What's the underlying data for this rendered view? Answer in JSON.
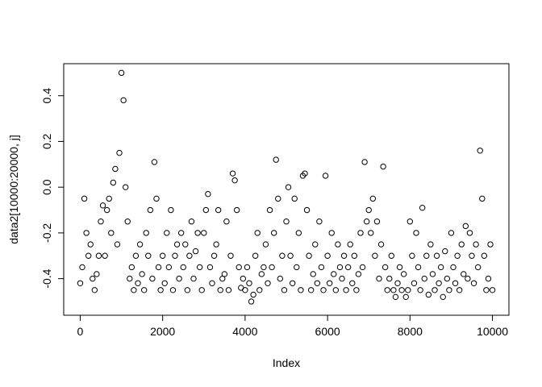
{
  "chart_data": {
    "type": "scatter",
    "x_label": "Index",
    "y_label": "data2[10000:20000, j]",
    "x": [
      0,
      50,
      100,
      150,
      200,
      250,
      300,
      350,
      400,
      450,
      500,
      550,
      600,
      650,
      700,
      750,
      800,
      850,
      900,
      950,
      1000,
      1050,
      1100,
      1150,
      1200,
      1250,
      1300,
      1350,
      1400,
      1450,
      1500,
      1550,
      1600,
      1650,
      1700,
      1750,
      1800,
      1850,
      1900,
      1950,
      2000,
      2050,
      2100,
      2150,
      2200,
      2250,
      2300,
      2350,
      2400,
      2450,
      2500,
      2550,
      2600,
      2650,
      2700,
      2750,
      2800,
      2850,
      2900,
      2950,
      3000,
      3050,
      3100,
      3150,
      3200,
      3250,
      3300,
      3350,
      3400,
      3450,
      3500,
      3550,
      3600,
      3650,
      3700,
      3750,
      3800,
      3850,
      3900,
      3950,
      4000,
      4050,
      4100,
      4150,
      4200,
      4250,
      4300,
      4350,
      4400,
      4450,
      4500,
      4550,
      4600,
      4650,
      4700,
      4750,
      4800,
      4850,
      4900,
      4950,
      5000,
      5050,
      5100,
      5150,
      5200,
      5250,
      5300,
      5350,
      5400,
      5450,
      5500,
      5550,
      5600,
      5650,
      5700,
      5750,
      5800,
      5850,
      5900,
      5950,
      6000,
      6050,
      6100,
      6150,
      6200,
      6250,
      6300,
      6350,
      6400,
      6450,
      6500,
      6550,
      6600,
      6650,
      6700,
      6750,
      6800,
      6850,
      6900,
      6950,
      7000,
      7050,
      7100,
      7150,
      7200,
      7250,
      7300,
      7350,
      7400,
      7450,
      7500,
      7550,
      7600,
      7650,
      7700,
      7750,
      7800,
      7850,
      7900,
      7950,
      8000,
      8050,
      8100,
      8150,
      8200,
      8250,
      8300,
      8350,
      8400,
      8450,
      8500,
      8550,
      8600,
      8650,
      8700,
      8750,
      8800,
      8850,
      8900,
      8950,
      9000,
      9050,
      9100,
      9150,
      9200,
      9250,
      9300,
      9350,
      9400,
      9450,
      9500,
      9550,
      9600,
      9650,
      9700,
      9750,
      9800,
      9850,
      9900,
      9950,
      10000
    ],
    "values": [
      -0.42,
      -0.35,
      -0.05,
      -0.2,
      -0.3,
      -0.25,
      -0.4,
      -0.45,
      -0.38,
      -0.3,
      -0.15,
      -0.08,
      -0.3,
      -0.1,
      -0.05,
      -0.2,
      0.02,
      0.08,
      -0.25,
      0.15,
      0.5,
      0.38,
      0.0,
      -0.15,
      -0.4,
      -0.35,
      -0.45,
      -0.3,
      -0.42,
      -0.25,
      -0.38,
      -0.45,
      -0.2,
      -0.3,
      -0.1,
      -0.4,
      0.11,
      -0.05,
      -0.35,
      -0.45,
      -0.3,
      -0.42,
      -0.2,
      -0.35,
      -0.1,
      -0.45,
      -0.3,
      -0.25,
      -0.4,
      -0.2,
      -0.35,
      -0.25,
      -0.45,
      -0.3,
      -0.15,
      -0.4,
      -0.28,
      -0.2,
      -0.35,
      -0.45,
      -0.2,
      -0.1,
      -0.03,
      -0.35,
      -0.42,
      -0.3,
      -0.25,
      -0.1,
      -0.45,
      -0.4,
      -0.38,
      -0.15,
      -0.45,
      -0.3,
      0.06,
      0.03,
      -0.1,
      -0.35,
      -0.44,
      -0.4,
      -0.45,
      -0.35,
      -0.42,
      -0.5,
      -0.47,
      -0.3,
      -0.2,
      -0.45,
      -0.38,
      -0.35,
      -0.25,
      -0.42,
      -0.1,
      -0.35,
      -0.2,
      0.12,
      -0.05,
      -0.4,
      -0.3,
      -0.45,
      -0.15,
      0.0,
      -0.3,
      -0.42,
      -0.05,
      -0.35,
      -0.2,
      -0.45,
      0.05,
      0.06,
      -0.1,
      -0.3,
      -0.45,
      -0.38,
      -0.25,
      -0.42,
      -0.15,
      -0.35,
      -0.45,
      0.05,
      -0.3,
      -0.42,
      -0.2,
      -0.38,
      -0.45,
      -0.25,
      -0.35,
      -0.4,
      -0.3,
      -0.45,
      -0.35,
      -0.25,
      -0.42,
      -0.3,
      -0.45,
      -0.38,
      -0.2,
      -0.35,
      0.11,
      -0.15,
      -0.1,
      -0.2,
      -0.05,
      -0.3,
      -0.15,
      -0.4,
      -0.25,
      0.09,
      -0.35,
      -0.45,
      -0.4,
      -0.3,
      -0.45,
      -0.48,
      -0.42,
      -0.35,
      -0.45,
      -0.38,
      -0.48,
      -0.45,
      -0.15,
      -0.3,
      -0.42,
      -0.2,
      -0.35,
      -0.45,
      -0.09,
      -0.4,
      -0.3,
      -0.47,
      -0.25,
      -0.38,
      -0.45,
      -0.3,
      -0.42,
      -0.35,
      -0.48,
      -0.28,
      -0.4,
      -0.45,
      -0.2,
      -0.35,
      -0.42,
      -0.3,
      -0.45,
      -0.25,
      -0.38,
      -0.17,
      -0.4,
      -0.2,
      -0.3,
      -0.42,
      -0.25,
      -0.35,
      0.16,
      -0.05,
      -0.3,
      -0.45,
      -0.4,
      -0.25,
      -0.45
    ],
    "color": "#000000",
    "xlim": [
      -400,
      10400
    ],
    "ylim": [
      -0.56,
      0.54
    ],
    "xticks": [
      0,
      2000,
      4000,
      6000,
      8000,
      10000
    ],
    "yticks": [
      -0.4,
      -0.2,
      {
        "value": 0,
        "label": "0.0"
      },
      0.2,
      0.4
    ]
  }
}
